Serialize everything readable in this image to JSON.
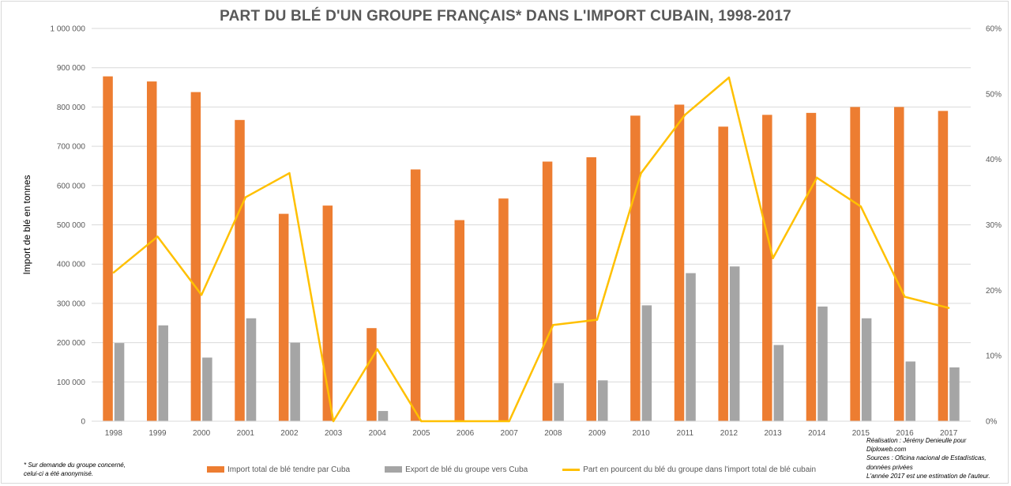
{
  "title": "PART DU BLÉ D'UN GROUPE FRANÇAIS* DANS L'IMPORT CUBAIN, 1998-2017",
  "chart_data": {
    "type": "bar",
    "title": "PART DU BLÉ D'UN GROUPE FRANÇAIS* DANS L'IMPORT CUBAIN, 1998-2017",
    "ylabel": "Import de blé en tonnes",
    "categories": [
      "1998",
      "1999",
      "2000",
      "2001",
      "2002",
      "2003",
      "2004",
      "2005",
      "2006",
      "2007",
      "2008",
      "2009",
      "2010",
      "2011",
      "2012",
      "2013",
      "2014",
      "2015",
      "2016",
      "2017"
    ],
    "ylim": [
      0,
      1000000
    ],
    "y_ticks": [
      0,
      100000,
      200000,
      300000,
      400000,
      500000,
      600000,
      700000,
      800000,
      900000,
      1000000
    ],
    "y_tick_labels": [
      "0",
      "100 000",
      "200 000",
      "300 000",
      "400 000",
      "500 000",
      "600 000",
      "700 000",
      "800 000",
      "900 000",
      "1 000 000"
    ],
    "y2lim": [
      0,
      60
    ],
    "y2_ticks": [
      0,
      10,
      20,
      30,
      40,
      50,
      60
    ],
    "y2_tick_labels": [
      "0%",
      "10%",
      "20%",
      "30%",
      "40%",
      "50%",
      "60%"
    ],
    "grid": true,
    "legend_position": "bottom",
    "series": [
      {
        "name": "Import total de blé tendre par Cuba",
        "type": "bar",
        "axis": "left",
        "color": "#ED7D31",
        "values": [
          878000,
          865000,
          838000,
          767000,
          528000,
          549000,
          237000,
          641000,
          512000,
          567000,
          661000,
          672000,
          778000,
          806000,
          750000,
          780000,
          785000,
          800000,
          800000,
          790000
        ]
      },
      {
        "name": "Export de blé du groupe vers Cuba",
        "type": "bar",
        "axis": "left",
        "color": "#A5A5A5",
        "values": [
          199000,
          244000,
          162000,
          262000,
          200000,
          0,
          26000,
          0,
          0,
          0,
          97000,
          104000,
          295000,
          377000,
          394000,
          194000,
          292000,
          262000,
          152000,
          137000
        ]
      },
      {
        "name": "Part en pourcent du blé du groupe dans l'import total de blé cubain",
        "type": "line",
        "axis": "right",
        "color": "#FFC000",
        "values": [
          22.7,
          28.2,
          19.3,
          34.2,
          37.9,
          0,
          11.0,
          0,
          0,
          0,
          14.7,
          15.5,
          37.9,
          46.8,
          52.5,
          24.9,
          37.2,
          32.8,
          19.0,
          17.3
        ]
      }
    ]
  },
  "footnote": [
    "* Sur demande du groupe concerné,",
    "celui-ci a été anonymisé."
  ],
  "credits": [
    "Réalisation : Jérémy Denieulle pour",
    "Diploweb.com",
    "Sources : Oficina nacional de Estadísticas,",
    "données privées",
    "L'année 2017 est une estimation de l'auteur."
  ]
}
